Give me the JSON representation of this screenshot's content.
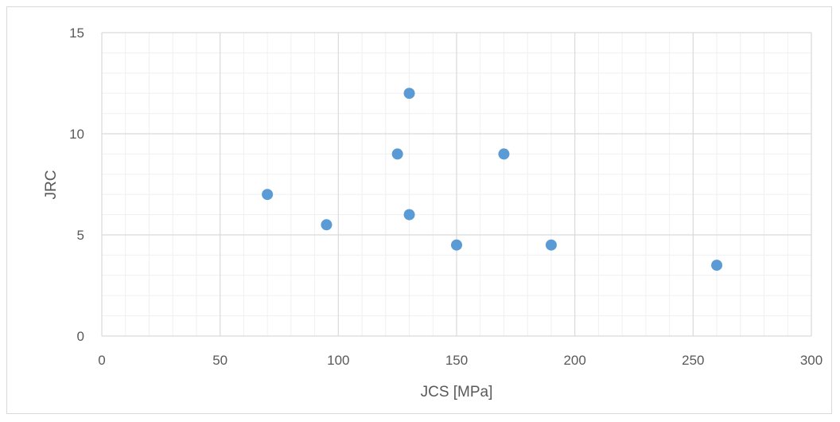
{
  "chart_data": {
    "type": "scatter",
    "title": "",
    "xlabel": "JCS [MPa]",
    "ylabel": "JRC",
    "xlim": [
      0,
      300
    ],
    "ylim": [
      0,
      15
    ],
    "x_major_ticks": [
      "0",
      "50",
      "100",
      "150",
      "200",
      "250",
      "300"
    ],
    "y_major_ticks": [
      "0",
      "5",
      "10",
      "15"
    ],
    "grid": true,
    "minor_grid": true,
    "legend": "none",
    "marker_color": "#5b9bd5",
    "series": [
      {
        "points": [
          {
            "x": 70,
            "y": 7
          },
          {
            "x": 95,
            "y": 5.5
          },
          {
            "x": 125,
            "y": 9
          },
          {
            "x": 130,
            "y": 12
          },
          {
            "x": 130,
            "y": 6
          },
          {
            "x": 150,
            "y": 4.5
          },
          {
            "x": 170,
            "y": 9
          },
          {
            "x": 190,
            "y": 4.5
          },
          {
            "x": 260,
            "y": 3.5
          }
        ]
      }
    ]
  }
}
